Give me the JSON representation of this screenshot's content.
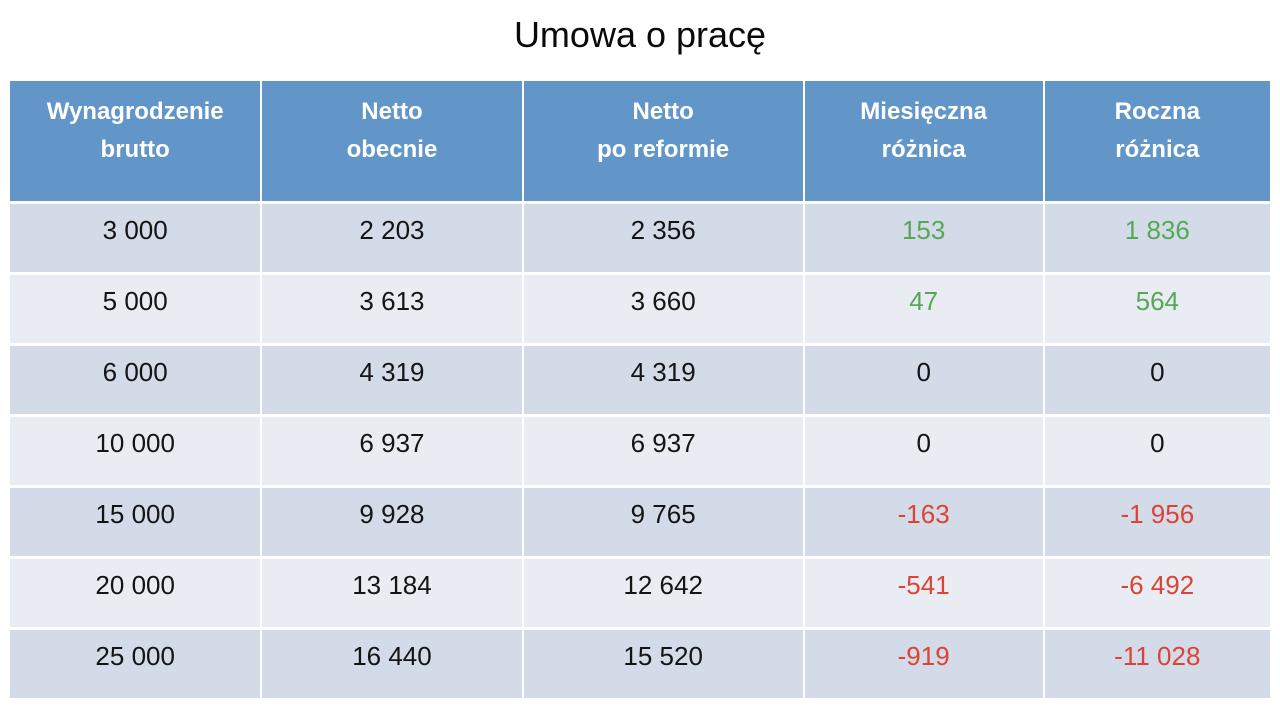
{
  "title": "Umowa o pracę",
  "colors": {
    "header_bg": "#6396C8",
    "header_text": "#FFFFFF",
    "row_odd_bg": "#D2DBE7",
    "row_even_bg": "#E9ECF3",
    "positive": "#57A757",
    "negative": "#DC4334",
    "neutral": "#141414",
    "title_text": "#0A0A0A"
  },
  "table": {
    "headers": [
      {
        "id": "wynagrodzenie-brutto",
        "lines": [
          "Wynagrodzenie",
          "brutto"
        ]
      },
      {
        "id": "netto-obecnie",
        "lines": [
          "Netto",
          "obecnie"
        ]
      },
      {
        "id": "netto-po-reformie",
        "lines": [
          "Netto",
          "po reformie"
        ]
      },
      {
        "id": "miesieczna-roznica",
        "lines": [
          "Miesięczna",
          "różnica"
        ]
      },
      {
        "id": "roczna-roznica",
        "lines": [
          "Roczna",
          "różnica"
        ]
      }
    ],
    "rows": [
      {
        "cells": [
          "3 000",
          "2 203",
          "2 356",
          "153",
          "1 836"
        ],
        "diff_color": "positive"
      },
      {
        "cells": [
          "5 000",
          "3 613",
          "3 660",
          "47",
          "564"
        ],
        "diff_color": "positive"
      },
      {
        "cells": [
          "6 000",
          "4 319",
          "4 319",
          "0",
          "0"
        ],
        "diff_color": "neutral"
      },
      {
        "cells": [
          "10 000",
          "6 937",
          "6 937",
          "0",
          "0"
        ],
        "diff_color": "neutral"
      },
      {
        "cells": [
          "15 000",
          "9 928",
          "9 765",
          "-163",
          "-1 956"
        ],
        "diff_color": "negative"
      },
      {
        "cells": [
          "20 000",
          "13 184",
          "12 642",
          "-541",
          "-6 492"
        ],
        "diff_color": "negative"
      },
      {
        "cells": [
          "25 000",
          "16 440",
          "15 520",
          "-919",
          "-11 028"
        ],
        "diff_color": "negative"
      }
    ]
  },
  "chart_data": {
    "type": "table",
    "title": "Umowa o pracę",
    "columns": [
      "Wynagrodzenie brutto",
      "Netto obecnie",
      "Netto po reformie",
      "Miesięczna różnica",
      "Roczna różnica"
    ],
    "rows": [
      [
        3000,
        2203,
        2356,
        153,
        1836
      ],
      [
        5000,
        3613,
        3660,
        47,
        564
      ],
      [
        6000,
        4319,
        4319,
        0,
        0
      ],
      [
        10000,
        6937,
        6937,
        0,
        0
      ],
      [
        15000,
        9928,
        9765,
        -163,
        -1956
      ],
      [
        20000,
        13184,
        12642,
        -541,
        -6492
      ],
      [
        25000,
        16440,
        15520,
        -919,
        -11028
      ]
    ],
    "notes": "Positive differences rendered green, negative red, zero black. Values use space as thousands separator."
  }
}
